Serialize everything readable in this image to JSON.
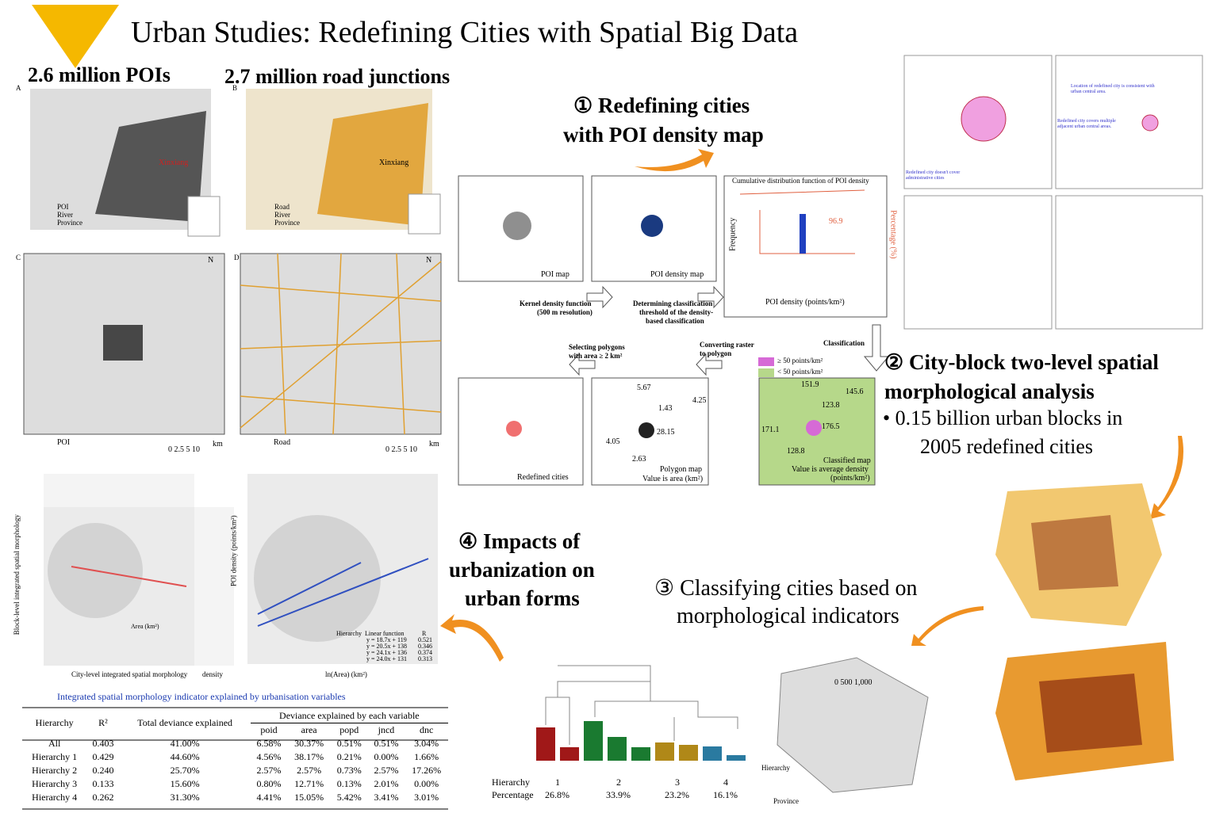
{
  "header": {
    "title": "Urban Studies: Redefining Cities with Spatial Big Data"
  },
  "data_sources": {
    "poi_heading": "2.6 million POIs",
    "road_heading": "2.7 million road junctions",
    "panel_labels": [
      "A",
      "B",
      "C",
      "D"
    ],
    "city_label": "Xinxiang",
    "poi_legend": [
      "POI",
      "River",
      "Province"
    ],
    "road_legend": [
      "Road",
      "River",
      "Province"
    ],
    "scale_label": "0 2.5 5    10",
    "scale_unit": "km",
    "north": "N"
  },
  "section1": {
    "heading": [
      "① Redefining cities",
      "with POI density map"
    ],
    "poi_map": "POI map",
    "density_map": "POI density map",
    "kernel": [
      "Kernel density function",
      "(500 m resolution)"
    ],
    "threshold": [
      "Determining classification",
      "threshold of the density-",
      "based classification"
    ],
    "cdf_title": "Cumulative distribution function of POI density",
    "cdf_x": "POI density (points/km²)",
    "cdf_y": "Frequency",
    "cdf_y2": "Percentage (%)",
    "cdf_threshold": "96.9",
    "classification": "Classification",
    "legend_high": "≥ 50 points/km²",
    "legend_low": "< 50 points/km²",
    "classified_values": [
      151.9,
      145.6,
      123.8,
      171.1,
      176.5,
      128.8
    ],
    "classified_caption": [
      "Classified map",
      "Value is average density",
      "(points/km²)"
    ],
    "converting": [
      "Converting raster",
      "to polygon"
    ],
    "polygon_values": [
      5.67,
      1.43,
      4.25,
      28.15,
      4.05,
      2.63
    ],
    "polygon_caption": [
      "Polygon map",
      "Value is area (km²)"
    ],
    "selecting": [
      "Selecting polygons",
      "with area ≥ 2 km²"
    ],
    "redefined": "Redefined cities"
  },
  "section2": {
    "heading": [
      "② City-block two-level spatial",
      "morphological analysis"
    ],
    "bullet": [
      "0.15 billion urban blocks in",
      "2005 redefined cities"
    ],
    "notes": [
      "Location of redefined city is consistent with urban central area.",
      "Redefined city covers multiple adjacent urban central areas.",
      "Redefined city doesn't cover administrative cities"
    ]
  },
  "section3": {
    "heading": [
      "③ Classifying cities based on",
      "morphological indicators"
    ],
    "hierarchy_label": "Hierarchy",
    "percentage_label": "Percentage",
    "hierarchies": [
      "1",
      "2",
      "3",
      "4"
    ],
    "percentages": [
      "26.8%",
      "33.9%",
      "23.2%",
      "16.1%"
    ],
    "map_scale": "0   500 1,000",
    "legend_province": "Province"
  },
  "section4": {
    "heading": [
      "④ Impacts of",
      "urbanization on",
      "urban forms"
    ],
    "a_x": "City-level integrated spatial morphology",
    "a_y": "Block-level integrated spatial morphology",
    "a_density": "density",
    "b_x": "ln(Area) (km²)",
    "b_y": "POI density (points/km²)",
    "legend_head": [
      "Hierarchy",
      "Linear function",
      "R"
    ],
    "functions": [
      "y = 18.7x + 119",
      "y = 20.5x + 138",
      "y = 24.1x + 136",
      "y = 24.0x + 131"
    ],
    "r_values": [
      "0.521",
      "0.346",
      "0.374",
      "0.313"
    ],
    "area_legend": "Area (km²)"
  },
  "table": {
    "title": "Integrated spatial morphology indicator explained by urbanisation variables",
    "headers": [
      "Hierarchy",
      "R²",
      "Total deviance explained"
    ],
    "group_header": "Deviance explained by each variable",
    "variables": [
      "poid",
      "area",
      "popd",
      "jncd",
      "dnc"
    ],
    "rows": [
      [
        "All",
        "0.403",
        "41.00%",
        "6.58%",
        "30.37%",
        "0.51%",
        "0.51%",
        "3.04%"
      ],
      [
        "Hierarchy 1",
        "0.429",
        "44.60%",
        "4.56%",
        "38.17%",
        "0.21%",
        "0.00%",
        "1.66%"
      ],
      [
        "Hierarchy 2",
        "0.240",
        "25.70%",
        "2.57%",
        "2.57%",
        "0.73%",
        "2.57%",
        "17.26%"
      ],
      [
        "Hierarchy 3",
        "0.133",
        "15.60%",
        "0.80%",
        "12.71%",
        "0.13%",
        "2.01%",
        "0.00%"
      ],
      [
        "Hierarchy 4",
        "0.262",
        "31.30%",
        "4.41%",
        "15.05%",
        "5.42%",
        "3.41%",
        "3.01%"
      ]
    ]
  }
}
